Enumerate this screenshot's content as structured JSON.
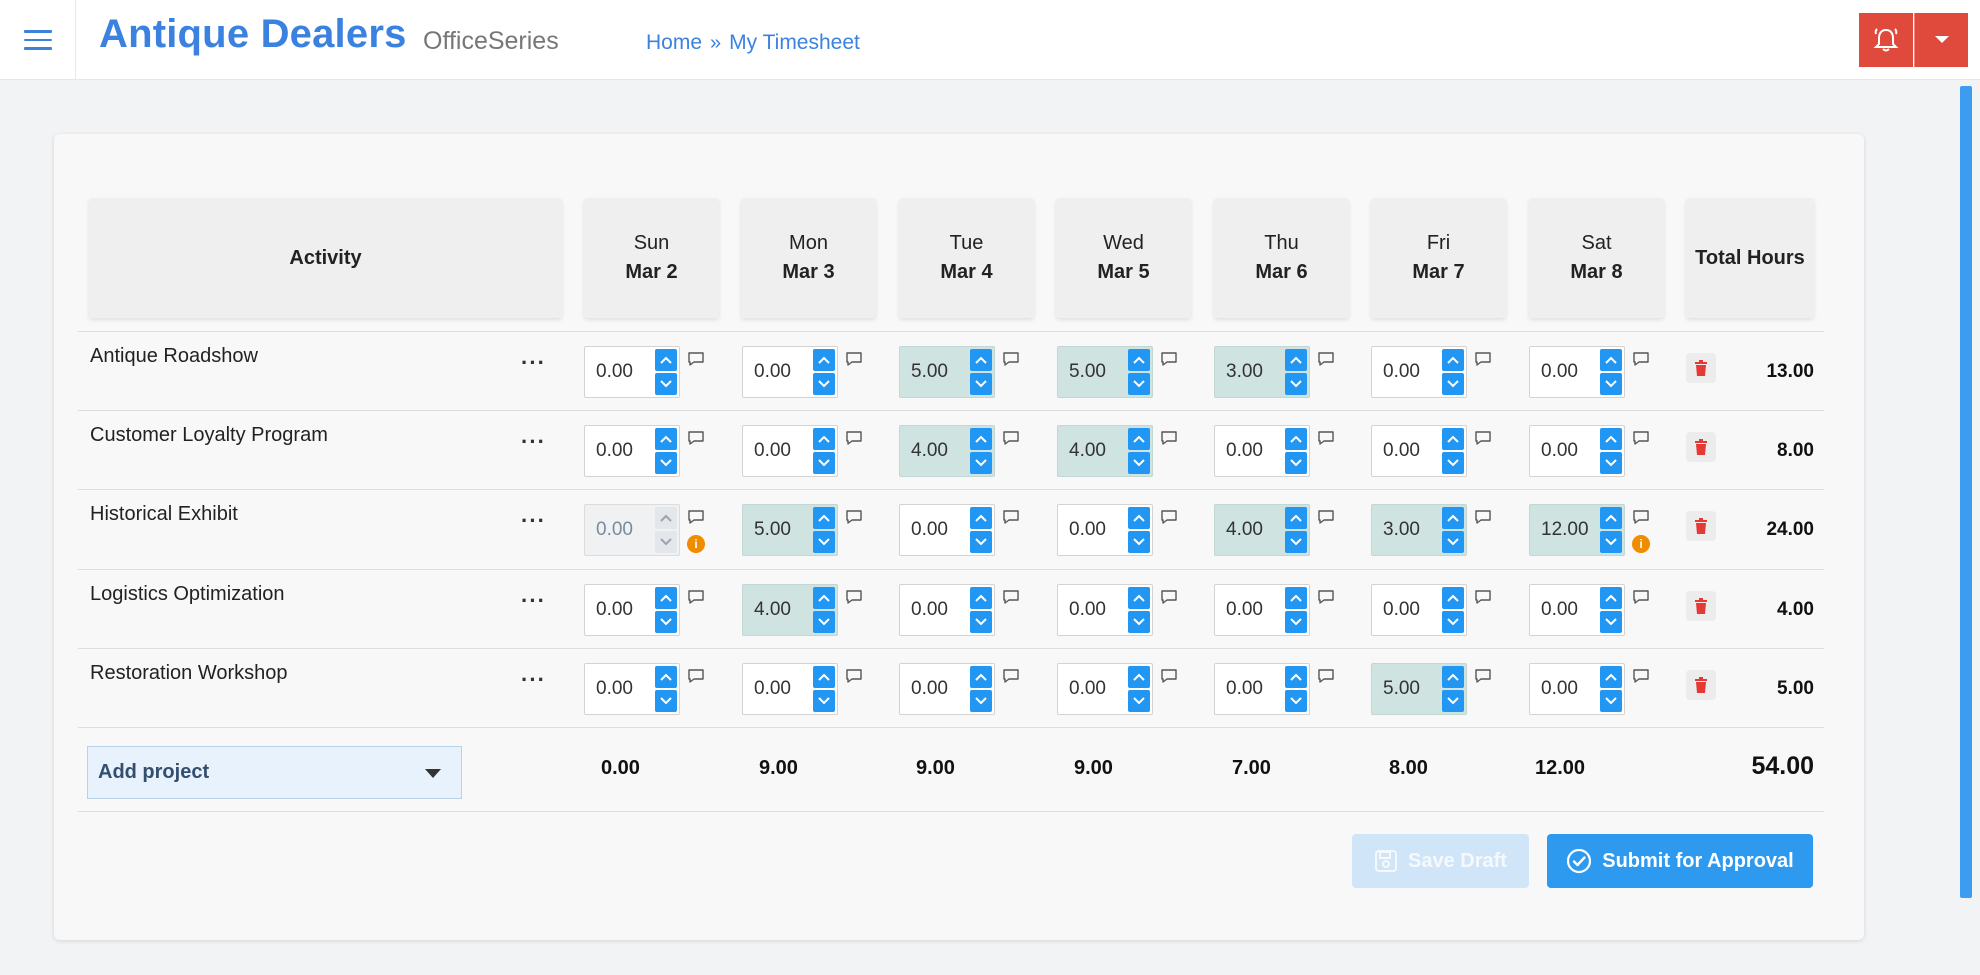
{
  "header": {
    "brand": "Antique Dealers",
    "suite": "OfficeSeries",
    "breadcrumb": {
      "home": "Home",
      "separator": "»",
      "current": "My Timesheet"
    },
    "accent_color": "#3b82e0",
    "alert_color": "#e04a3c"
  },
  "table": {
    "activity_header": "Activity",
    "total_header": "Total Hours",
    "days": [
      {
        "day": "Sun",
        "date": "Mar 2"
      },
      {
        "day": "Mon",
        "date": "Mar 3"
      },
      {
        "day": "Tue",
        "date": "Mar 4"
      },
      {
        "day": "Wed",
        "date": "Mar 5"
      },
      {
        "day": "Thu",
        "date": "Mar 6"
      },
      {
        "day": "Fri",
        "date": "Mar 7"
      },
      {
        "day": "Sat",
        "date": "Mar 8"
      }
    ],
    "rows": [
      {
        "name": "Antique Roadshow",
        "more": "···",
        "hours": [
          "0.00",
          "0.00",
          "5.00",
          "5.00",
          "3.00",
          "0.00",
          "0.00"
        ],
        "total": "13.00"
      },
      {
        "name": "Customer Loyalty Program",
        "more": "···",
        "hours": [
          "0.00",
          "0.00",
          "4.00",
          "4.00",
          "0.00",
          "0.00",
          "0.00"
        ],
        "total": "8.00"
      },
      {
        "name": "Historical Exhibit",
        "more": "···",
        "hours": [
          "0.00",
          "5.00",
          "0.00",
          "0.00",
          "4.00",
          "3.00",
          "12.00"
        ],
        "total": "24.00"
      },
      {
        "name": "Logistics Optimization",
        "more": "···",
        "hours": [
          "0.00",
          "4.00",
          "0.00",
          "0.00",
          "0.00",
          "0.00",
          "0.00"
        ],
        "total": "4.00"
      },
      {
        "name": "Restoration Workshop",
        "more": "···",
        "hours": [
          "0.00",
          "0.00",
          "0.00",
          "0.00",
          "0.00",
          "5.00",
          "0.00"
        ],
        "total": "5.00"
      }
    ],
    "day_totals": [
      "0.00",
      "9.00",
      "9.00",
      "9.00",
      "7.00",
      "8.00",
      "12.00"
    ],
    "grand_total": "54.00"
  },
  "add_project": {
    "label": "Add project"
  },
  "actions": {
    "save_draft": "Save Draft",
    "submit": "Submit for Approval"
  }
}
